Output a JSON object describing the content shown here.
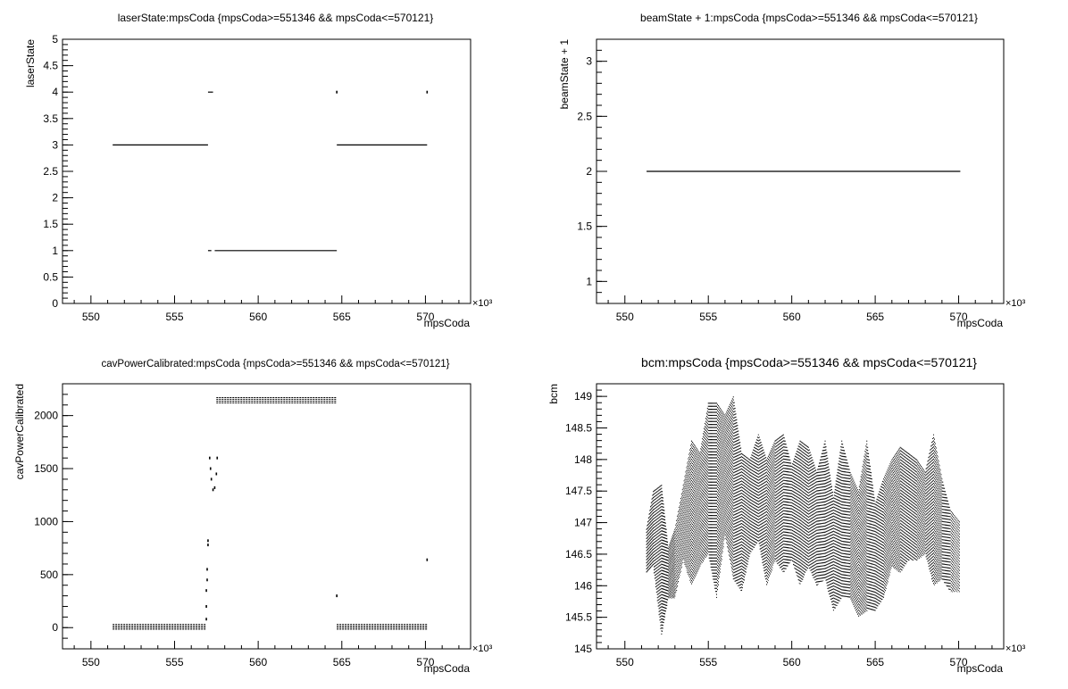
{
  "chart_data": [
    {
      "type": "scatter",
      "title": "laserState:mpsCoda {mpsCoda>=551346 && mpsCoda<=570121}",
      "xlabel": "mpsCoda",
      "ylabel": "laserState",
      "x_multiplier": "×10³",
      "xlim": [
        548.3,
        572.7
      ],
      "ylim": [
        0,
        5
      ],
      "xticks": [
        "550",
        "555",
        "560",
        "565",
        "570"
      ],
      "yticks": [
        "0",
        "0.5",
        "1",
        "1.5",
        "2",
        "2.5",
        "3",
        "3.5",
        "4",
        "4.5",
        "5"
      ],
      "series": [
        {
          "segments": [
            {
              "x": [
                551.3,
                557.0
              ],
              "y": 3
            },
            {
              "x": [
                557.0,
                557.3
              ],
              "y": 4
            },
            {
              "x": [
                557.0,
                557.2
              ],
              "y": 1
            },
            {
              "x": [
                557.4,
                564.7
              ],
              "y": 1
            },
            {
              "x": [
                564.7,
                570.1
              ],
              "y": 3
            }
          ],
          "points": [
            {
              "x": 564.7,
              "y": 4
            },
            {
              "x": 570.1,
              "y": 4
            }
          ]
        }
      ]
    },
    {
      "type": "scatter",
      "title": "beamState + 1:mpsCoda {mpsCoda>=551346 && mpsCoda<=570121}",
      "xlabel": "mpsCoda",
      "ylabel": "beamState + 1",
      "x_multiplier": "×10³",
      "xlim": [
        548.3,
        572.7
      ],
      "ylim": [
        0.8,
        3.2
      ],
      "xticks": [
        "550",
        "555",
        "560",
        "565",
        "570"
      ],
      "yticks": [
        "1",
        "1.5",
        "2",
        "2.5",
        "3"
      ],
      "series": [
        {
          "segments": [
            {
              "x": [
                551.3,
                570.1
              ],
              "y": 2
            }
          ],
          "points": []
        }
      ]
    },
    {
      "type": "scatter",
      "title": "cavPowerCalibrated:mpsCoda {mpsCoda>=551346 && mpsCoda<=570121}",
      "xlabel": "mpsCoda",
      "ylabel": "cavPowerCalibrated",
      "x_multiplier": "×10³",
      "xlim": [
        548.3,
        572.7
      ],
      "ylim": [
        -200,
        2300
      ],
      "xticks": [
        "550",
        "555",
        "560",
        "565",
        "570"
      ],
      "yticks": [
        "0",
        "500",
        "1000",
        "1500",
        "2000"
      ],
      "series": [
        {
          "bands": [
            {
              "x": [
                551.3,
                556.9
              ],
              "y": [
                -15,
                30
              ]
            },
            {
              "x": [
                557.5,
                564.7
              ],
              "y": [
                2120,
                2170
              ]
            },
            {
              "x": [
                564.7,
                570.1
              ],
              "y": [
                -15,
                30
              ]
            }
          ],
          "points": [
            {
              "x": 556.9,
              "y": 80
            },
            {
              "x": 556.9,
              "y": 200
            },
            {
              "x": 556.9,
              "y": 350
            },
            {
              "x": 556.95,
              "y": 450
            },
            {
              "x": 556.95,
              "y": 550
            },
            {
              "x": 557.0,
              "y": 780
            },
            {
              "x": 557.0,
              "y": 820
            },
            {
              "x": 557.1,
              "y": 1600
            },
            {
              "x": 557.15,
              "y": 1500
            },
            {
              "x": 557.2,
              "y": 1400
            },
            {
              "x": 557.3,
              "y": 1300
            },
            {
              "x": 557.4,
              "y": 1320
            },
            {
              "x": 557.5,
              "y": 1450
            },
            {
              "x": 557.55,
              "y": 1600
            },
            {
              "x": 564.7,
              "y": 300
            },
            {
              "x": 570.1,
              "y": 640
            }
          ]
        }
      ]
    },
    {
      "type": "scatter",
      "title": "bcm:mpsCoda {mpsCoda>=551346 && mpsCoda<=570121}",
      "xlabel": "mpsCoda",
      "ylabel": "bcm",
      "x_multiplier": "×10³",
      "xlim": [
        548.3,
        572.7
      ],
      "ylim": [
        145,
        149.2
      ],
      "xticks": [
        "550",
        "555",
        "560",
        "565",
        "570"
      ],
      "yticks": [
        "145",
        "145.5",
        "146",
        "146.5",
        "147",
        "147.5",
        "148",
        "148.5",
        "149"
      ],
      "series": [
        {
          "envelope": {
            "x": [
              551.3,
              551.7,
              552.2,
              552.6,
              553.0,
              553.5,
              554.0,
              554.5,
              555.0,
              555.5,
              556.0,
              556.5,
              557.0,
              557.5,
              558.0,
              558.5,
              559.0,
              559.5,
              560.0,
              560.5,
              561.0,
              561.5,
              562.0,
              562.5,
              563.0,
              563.5,
              564.0,
              564.5,
              565.0,
              565.5,
              566.0,
              566.5,
              567.0,
              567.5,
              568.0,
              568.5,
              569.0,
              569.5,
              570.1
            ],
            "hi": [
              146.9,
              147.5,
              147.6,
              146.6,
              146.9,
              147.6,
              148.3,
              148.1,
              148.9,
              148.9,
              148.7,
              149.0,
              148.1,
              148.0,
              148.4,
              148.0,
              148.3,
              148.4,
              147.9,
              148.3,
              148.2,
              147.8,
              148.3,
              147.4,
              148.3,
              147.8,
              147.5,
              148.3,
              147.3,
              147.7,
              148.0,
              148.2,
              148.1,
              148.0,
              147.8,
              148.4,
              147.7,
              147.2,
              147.0
            ],
            "lo": [
              146.2,
              146.3,
              145.2,
              145.8,
              145.8,
              146.4,
              146.0,
              146.3,
              146.5,
              145.8,
              146.8,
              146.1,
              145.9,
              146.5,
              146.7,
              146.0,
              146.4,
              146.2,
              146.4,
              146.0,
              146.3,
              146.0,
              146.1,
              145.6,
              145.8,
              145.8,
              145.5,
              145.6,
              145.6,
              145.8,
              146.3,
              146.2,
              146.4,
              146.4,
              146.5,
              146.0,
              146.1,
              145.9,
              145.9
            ]
          }
        }
      ]
    }
  ]
}
